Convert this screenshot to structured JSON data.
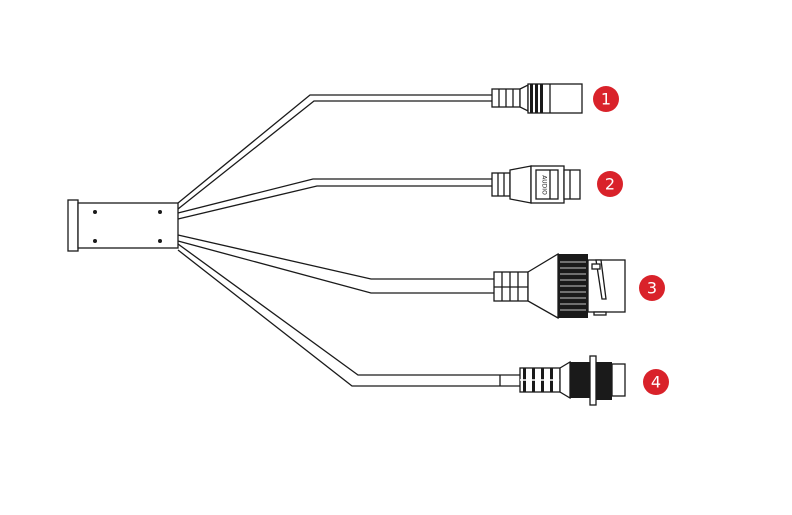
{
  "badges": {
    "c1": "1",
    "c2": "2",
    "c3": "3",
    "c4": "4"
  },
  "connector2_label": "AUDIO",
  "colors": {
    "badge": "#d9222a",
    "line": "#1a1a1a"
  }
}
